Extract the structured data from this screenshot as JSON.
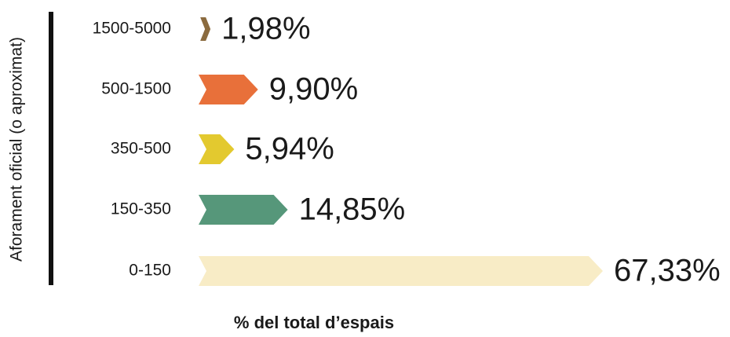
{
  "chart_data": {
    "type": "bar",
    "orientation": "horizontal",
    "xlabel": "% del total d’espais",
    "ylabel": "Aforament oficial (o aproximat)",
    "categories": [
      "1500-5000",
      "500-1500",
      "350-500",
      "150-350",
      "0-150"
    ],
    "values": [
      1.98,
      9.9,
      5.94,
      14.85,
      67.33
    ],
    "value_labels": [
      "1,98%",
      "9,90%",
      "5,94%",
      "14,85%",
      "67,33%"
    ],
    "colors": [
      "#8b6b3f",
      "#e8703a",
      "#e3c92f",
      "#56977a",
      "#f8ecc6"
    ]
  }
}
